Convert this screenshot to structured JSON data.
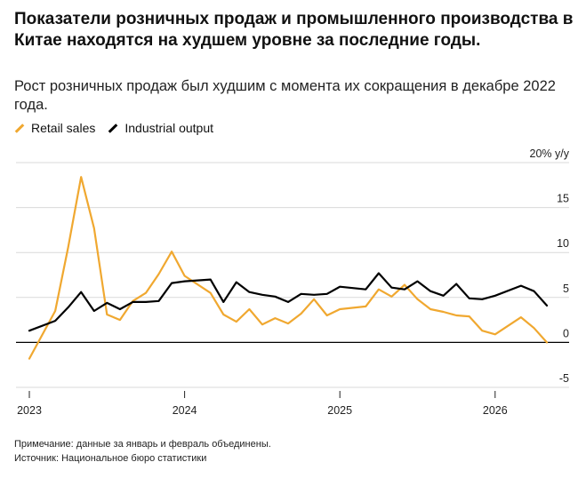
{
  "header": {
    "title": "Показатели розничных продаж и промышленного производства в Китае находятся на худшем уровне за последние годы.",
    "subtitle": "Рост розничных продаж был худшим с момента их сокращения в декабре 2022 года."
  },
  "footer": {
    "note": "Примечание: данные за январь и февраль объединены.",
    "source": "Источник: Национальное бюро статистики"
  },
  "colors": {
    "retail": "#f0a830",
    "industrial": "#000000",
    "grid": "#d9d9d9"
  },
  "chart_data": {
    "type": "line",
    "title": "Показатели розничных продаж и промышленного производства в Китае находятся на худшем уровне за последние годы.",
    "subtitle": "Рост розничных продаж был худшим с момента их сокращения в декабре 2022 года.",
    "unit_label": "20% y/y",
    "xlabel": "",
    "ylabel": "",
    "ylim": [
      -5,
      20
    ],
    "yticks": [
      {
        "value": 20,
        "label": "20% y/y"
      },
      {
        "value": 15,
        "label": "15"
      },
      {
        "value": 10,
        "label": "10"
      },
      {
        "value": 5,
        "label": "5"
      },
      {
        "value": 0,
        "label": "0"
      },
      {
        "value": -5,
        "label": "-5"
      }
    ],
    "xticks": [
      {
        "date": "2023-01",
        "label": "2023"
      },
      {
        "date": "2024-01",
        "label": "2024"
      },
      {
        "date": "2025-01",
        "label": "2025"
      },
      {
        "date": "2026-01",
        "label": "2026"
      }
    ],
    "grid": true,
    "legend_position": "top-left",
    "series": [
      {
        "name": "Retail sales",
        "color": "#f0a830",
        "points": [
          [
            "2023-01",
            -1.8
          ],
          [
            "2023-03",
            3.5
          ],
          [
            "2023-04",
            10.6
          ],
          [
            "2023-05",
            18.4
          ],
          [
            "2023-06",
            12.7
          ],
          [
            "2023-07",
            3.1
          ],
          [
            "2023-08",
            2.5
          ],
          [
            "2023-09",
            4.6
          ],
          [
            "2023-10",
            5.5
          ],
          [
            "2023-11",
            7.6
          ],
          [
            "2023-12",
            10.1
          ],
          [
            "2024-01",
            7.4
          ],
          [
            "2024-03",
            5.5
          ],
          [
            "2024-04",
            3.1
          ],
          [
            "2024-05",
            2.3
          ],
          [
            "2024-06",
            3.7
          ],
          [
            "2024-07",
            2.0
          ],
          [
            "2024-08",
            2.7
          ],
          [
            "2024-09",
            2.1
          ],
          [
            "2024-10",
            3.2
          ],
          [
            "2024-11",
            4.8
          ],
          [
            "2024-12",
            3.0
          ],
          [
            "2025-01",
            3.7
          ],
          [
            "2025-03",
            4.0
          ],
          [
            "2025-04",
            5.9
          ],
          [
            "2025-05",
            5.1
          ],
          [
            "2025-06",
            6.4
          ],
          [
            "2025-07",
            4.8
          ],
          [
            "2025-08",
            3.7
          ],
          [
            "2025-09",
            3.4
          ],
          [
            "2025-10",
            3.0
          ],
          [
            "2025-11",
            2.9
          ],
          [
            "2025-12",
            1.3
          ],
          [
            "2026-01",
            0.9
          ],
          [
            "2026-03",
            2.8
          ],
          [
            "2026-04",
            1.6
          ],
          [
            "2026-05",
            0.0
          ]
        ]
      },
      {
        "name": "Industrial output",
        "color": "#000000",
        "points": [
          [
            "2023-01",
            1.3
          ],
          [
            "2023-03",
            2.4
          ],
          [
            "2023-04",
            3.9
          ],
          [
            "2023-05",
            5.6
          ],
          [
            "2023-06",
            3.5
          ],
          [
            "2023-07",
            4.4
          ],
          [
            "2023-08",
            3.7
          ],
          [
            "2023-09",
            4.5
          ],
          [
            "2023-10",
            4.5
          ],
          [
            "2023-11",
            4.6
          ],
          [
            "2023-12",
            6.6
          ],
          [
            "2024-01",
            6.8
          ],
          [
            "2024-03",
            7.0
          ],
          [
            "2024-04",
            4.5
          ],
          [
            "2024-05",
            6.7
          ],
          [
            "2024-06",
            5.6
          ],
          [
            "2024-07",
            5.3
          ],
          [
            "2024-08",
            5.1
          ],
          [
            "2024-09",
            4.5
          ],
          [
            "2024-10",
            5.4
          ],
          [
            "2024-11",
            5.3
          ],
          [
            "2024-12",
            5.4
          ],
          [
            "2025-01",
            6.2
          ],
          [
            "2025-03",
            5.9
          ],
          [
            "2025-04",
            7.7
          ],
          [
            "2025-05",
            6.1
          ],
          [
            "2025-06",
            5.9
          ],
          [
            "2025-07",
            6.8
          ],
          [
            "2025-08",
            5.7
          ],
          [
            "2025-09",
            5.2
          ],
          [
            "2025-10",
            6.5
          ],
          [
            "2025-11",
            4.9
          ],
          [
            "2025-12",
            4.8
          ],
          [
            "2026-01",
            5.2
          ],
          [
            "2026-03",
            6.3
          ],
          [
            "2026-04",
            5.7
          ],
          [
            "2026-05",
            4.1
          ]
        ]
      }
    ]
  }
}
